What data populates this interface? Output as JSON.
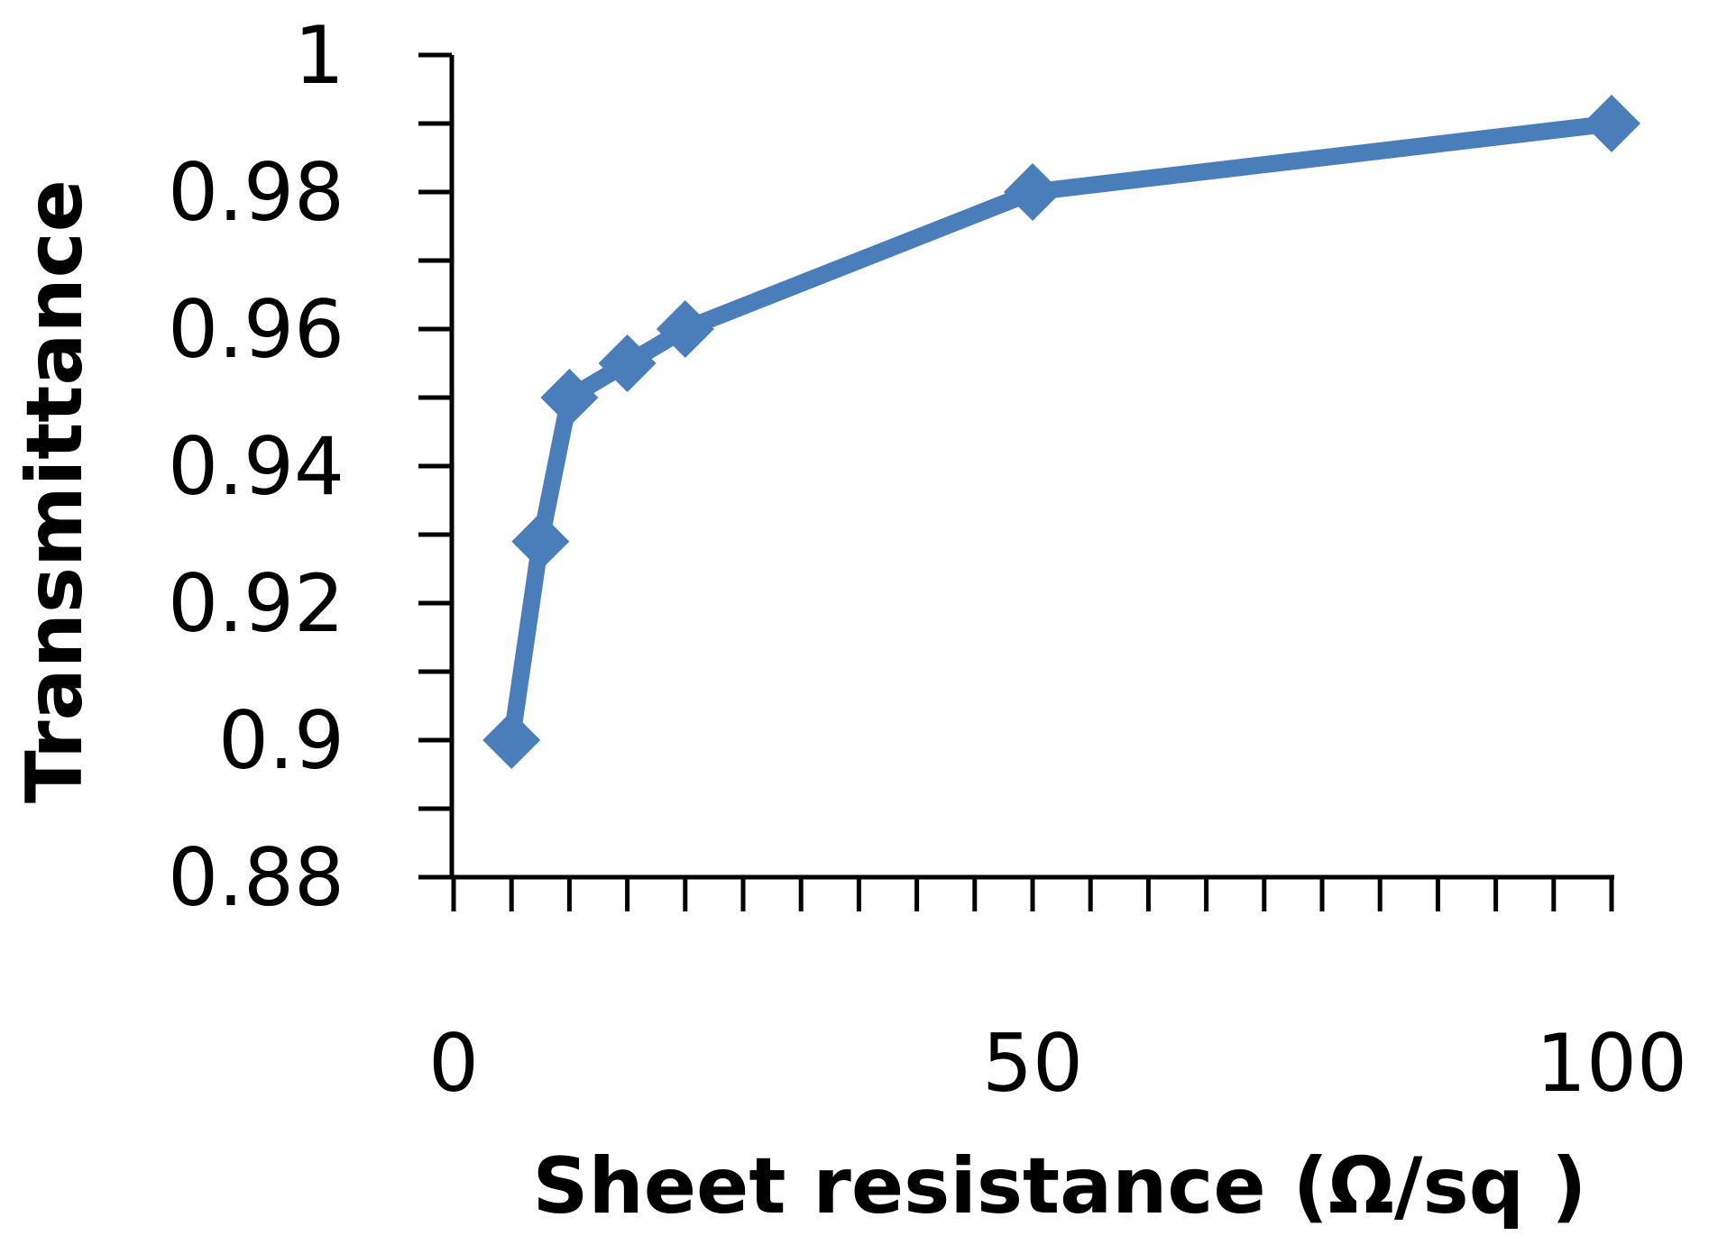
{
  "chart_data": {
    "type": "line",
    "title": "",
    "xlabel": "Sheet resistance (Ω/sq )",
    "ylabel": "Transmittance",
    "xlim": [
      0,
      100
    ],
    "ylim": [
      0.88,
      1
    ],
    "x_ticks": [
      0,
      50,
      100
    ],
    "x_tick_labels": [
      "0",
      "50",
      "100"
    ],
    "y_ticks": [
      0.88,
      0.9,
      0.92,
      0.94,
      0.96,
      0.98,
      1
    ],
    "y_tick_labels": [
      "0.88",
      "0.9",
      "0.92",
      "0.94",
      "0.96",
      "0.98",
      "1"
    ],
    "x_minor_step": 5,
    "y_minor_step": 0.01,
    "grid": false,
    "legend": "none",
    "colors": {
      "series": "#4A7EBB",
      "axis": "#000000"
    },
    "series": [
      {
        "marker": "diamond",
        "x": [
          5,
          7.5,
          10,
          15,
          20,
          50,
          100
        ],
        "y": [
          0.9,
          0.929,
          0.95,
          0.955,
          0.96,
          0.98,
          0.99
        ]
      }
    ]
  }
}
